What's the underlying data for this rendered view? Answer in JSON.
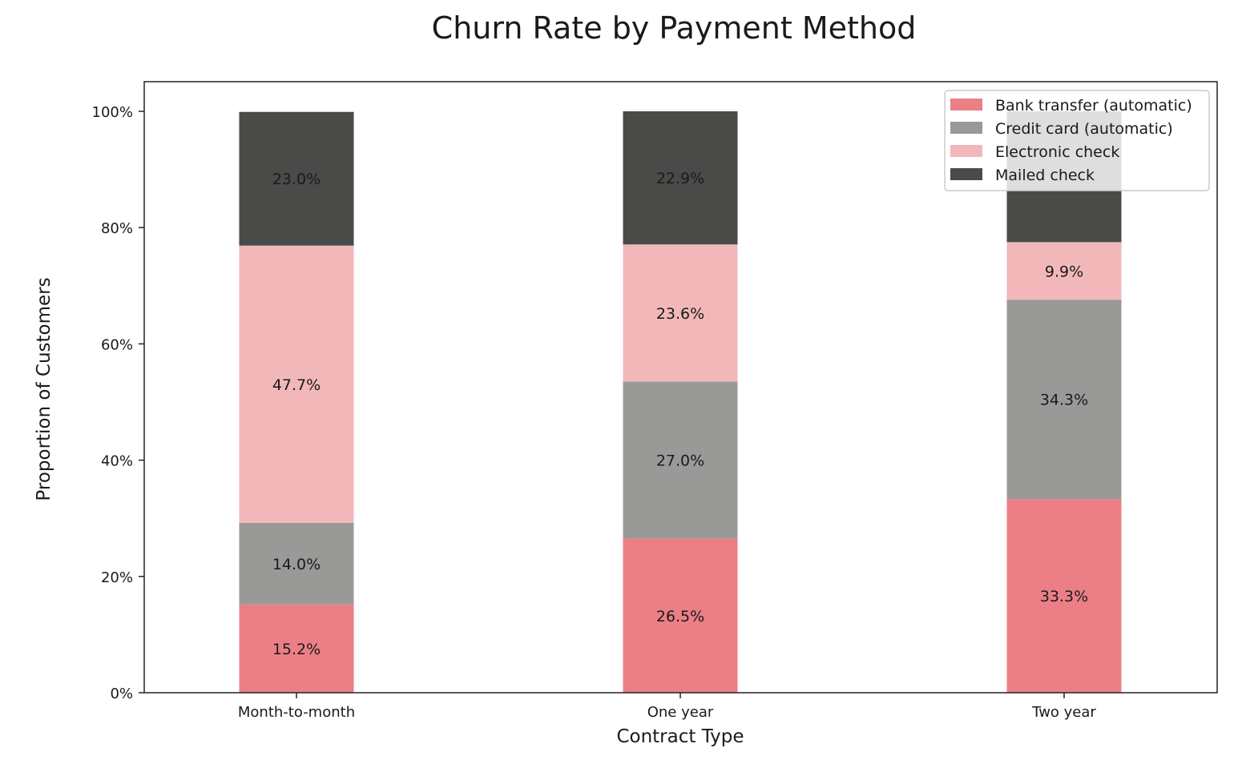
{
  "chart_data": {
    "type": "bar",
    "stacked": true,
    "title": "Churn Rate by Payment Method",
    "xlabel": "Contract Type",
    "ylabel": "Proportion of Customers",
    "ylim": [
      0,
      1.05
    ],
    "yticks": [
      0,
      0.2,
      0.4,
      0.6,
      0.8,
      1.0
    ],
    "ytick_labels": [
      "0%",
      "20%",
      "40%",
      "60%",
      "80%",
      "100%"
    ],
    "categories": [
      "Month-to-month",
      "One year",
      "Two year"
    ],
    "series": [
      {
        "name": "Bank transfer (automatic)",
        "color": "#EC7F86",
        "values": [
          0.152,
          0.265,
          0.333
        ],
        "labels": [
          "15.2%",
          "26.5%",
          "33.3%"
        ]
      },
      {
        "name": "Credit card (automatic)",
        "color": "#999998",
        "values": [
          0.14,
          0.27,
          0.343
        ],
        "labels": [
          "14.0%",
          "27.0%",
          "34.3%"
        ]
      },
      {
        "name": "Electronic check",
        "color": "#F2B8B9",
        "values": [
          0.477,
          0.236,
          0.099
        ],
        "labels": [
          "47.7%",
          "23.6%",
          "9.9%"
        ]
      },
      {
        "name": "Mailed check",
        "color": "#4A4B48",
        "values": [
          0.23,
          0.229,
          0.225
        ],
        "labels": [
          "23.0%",
          "22.9%",
          ""
        ]
      }
    ],
    "legend_position": "upper-right",
    "grid": false
  }
}
